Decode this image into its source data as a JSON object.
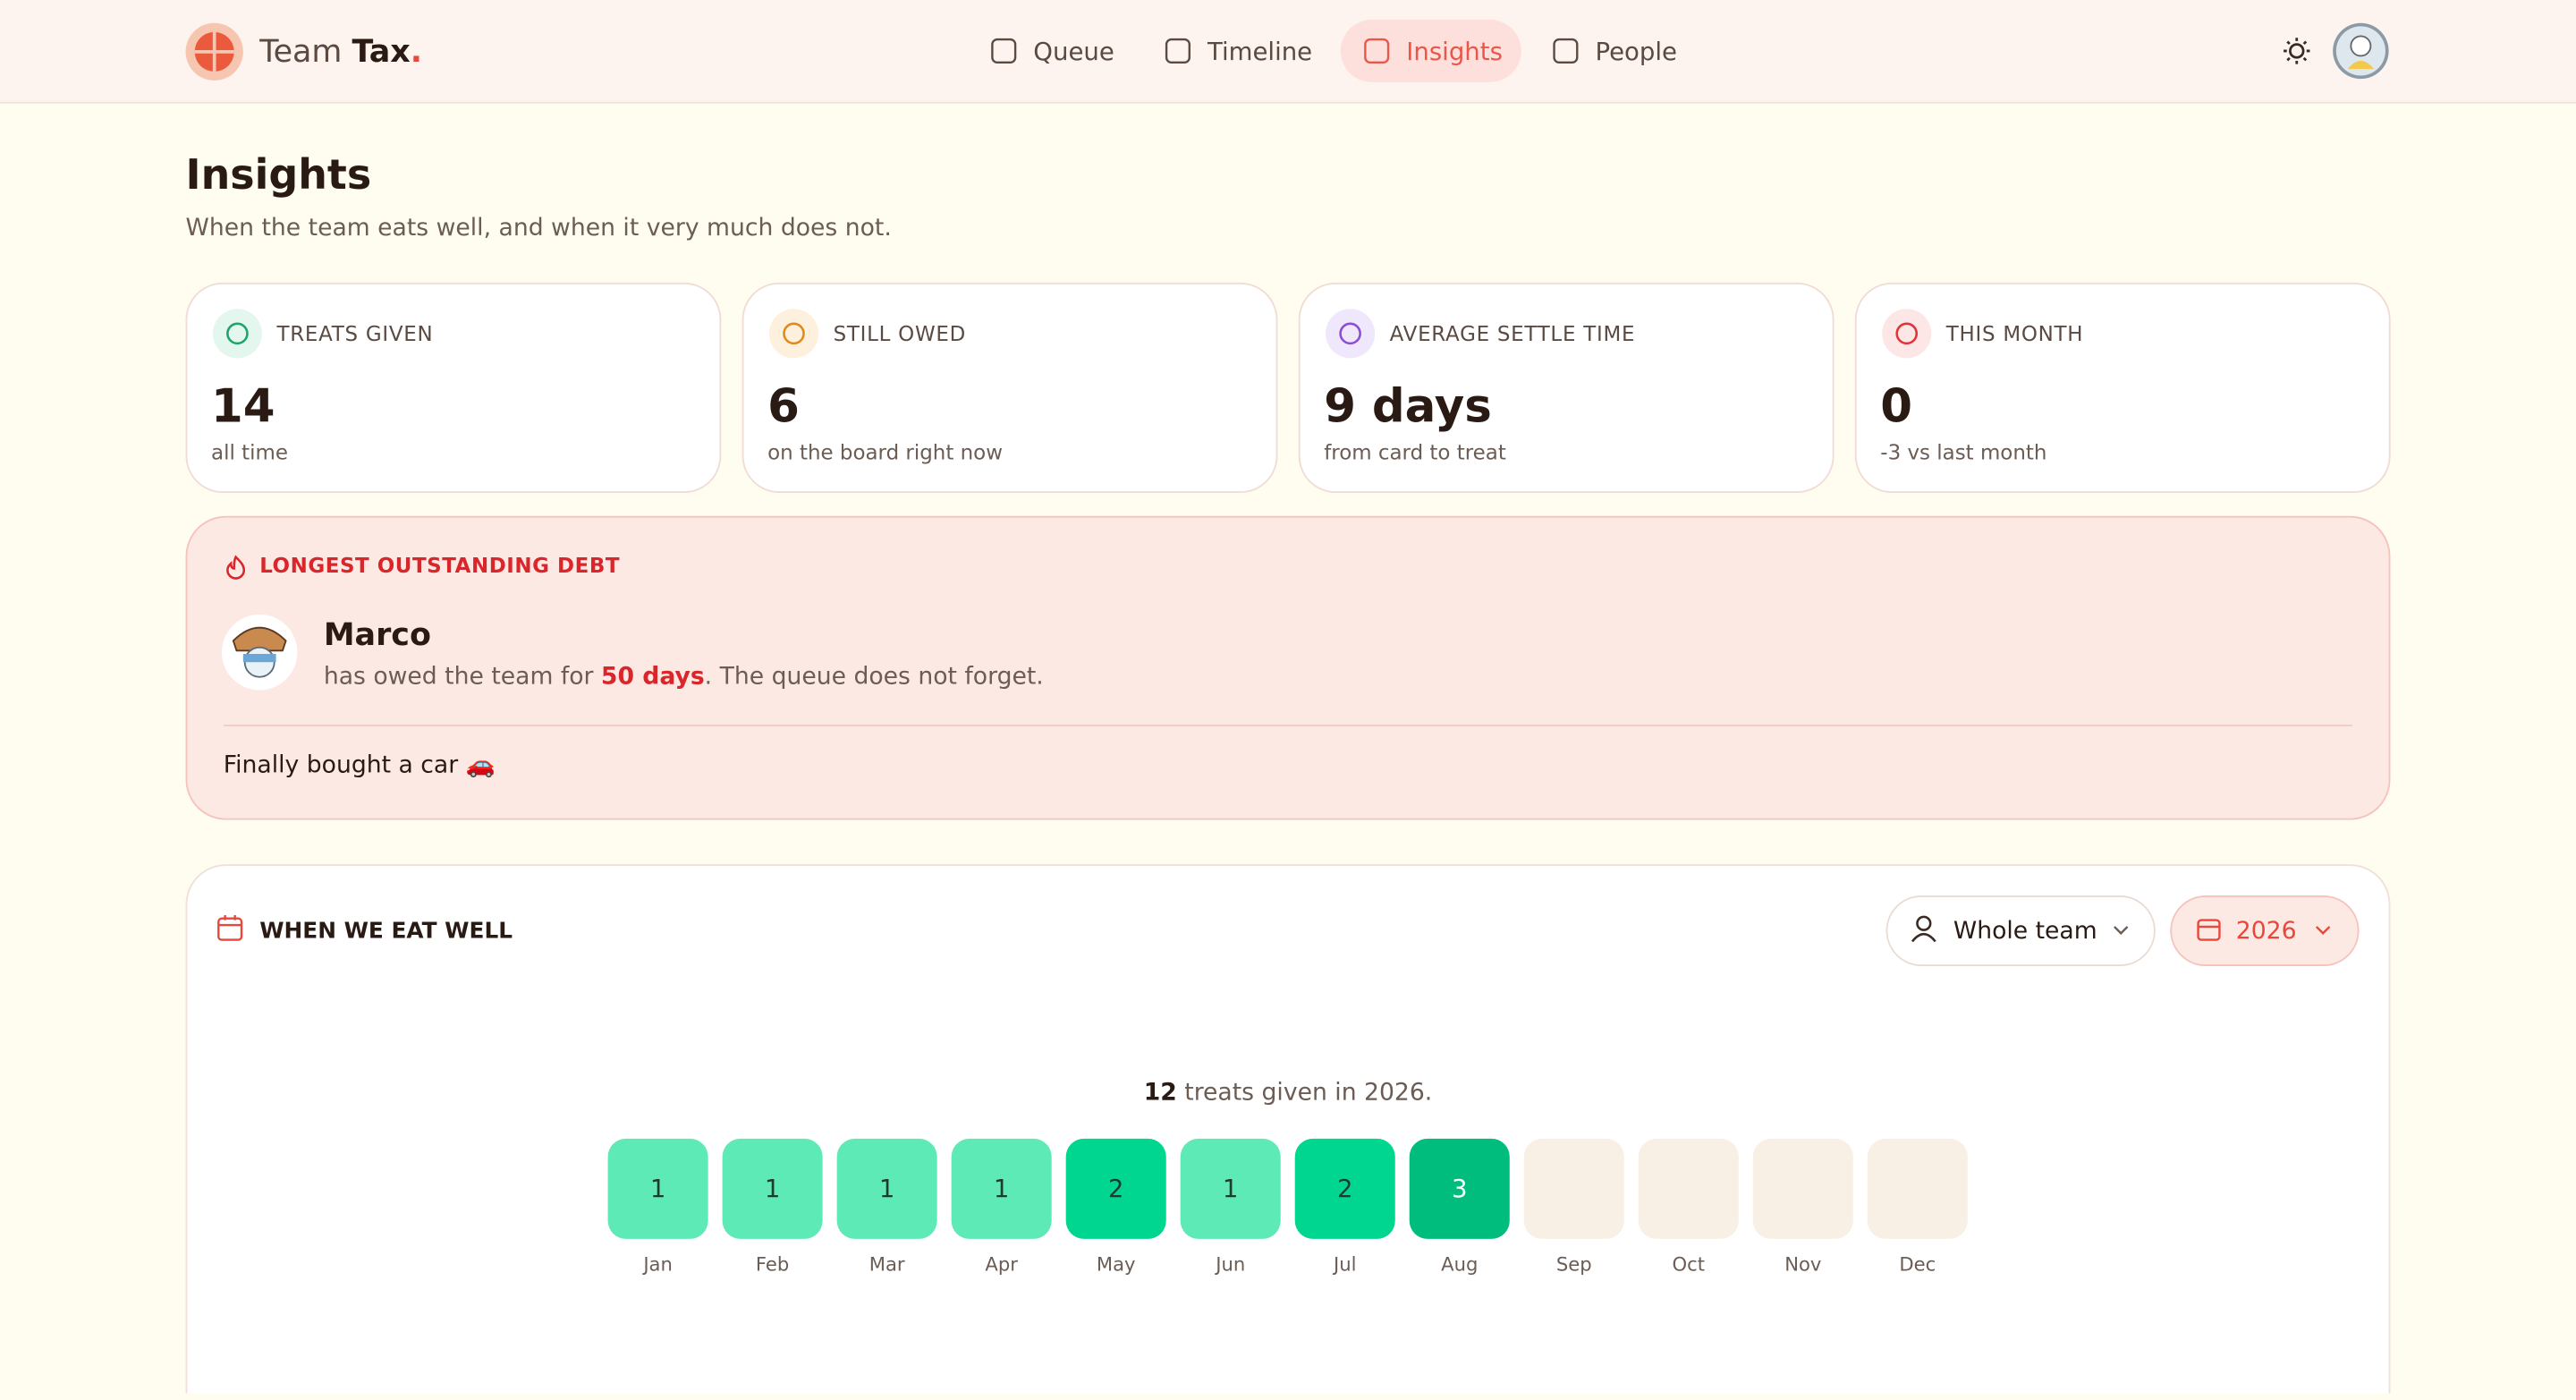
{
  "header": {
    "brand": {
      "first": "Team",
      "second": "Tax",
      "dot": "."
    },
    "nav": [
      {
        "label": "Queue"
      },
      {
        "label": "Timeline"
      },
      {
        "label": "Insights",
        "active": true
      },
      {
        "label": "People"
      }
    ]
  },
  "page": {
    "title": "Insights",
    "subtitle": "When the team eats well, and when it very much does not."
  },
  "stats": [
    {
      "label": "TREATS GIVEN",
      "value": "14",
      "caption": "all time"
    },
    {
      "label": "STILL OWED",
      "value": "6",
      "caption": "on the board right now"
    },
    {
      "label": "AVERAGE SETTLE TIME",
      "value": "9 days",
      "caption": "from card to treat"
    },
    {
      "label": "THIS MONTH",
      "value": "0",
      "caption": "-3 vs last month"
    }
  ],
  "debt": {
    "label": "LONGEST OUTSTANDING DEBT",
    "name": "Marco",
    "text_before": "has owed the team for",
    "highlight": "50 days",
    "text_after": ". The queue does not forget.",
    "note": "Finally bought a car 🚗"
  },
  "heatmap": {
    "title": "WHEN WE EAT WELL",
    "filter_person": "Whole team",
    "filter_year": "2026",
    "summary_count": "12",
    "summary_text": "treats given in 2026.",
    "months": [
      "Jan",
      "Feb",
      "Mar",
      "Apr",
      "May",
      "Jun",
      "Jul",
      "Aug",
      "Sep",
      "Oct",
      "Nov",
      "Dec"
    ],
    "counts": [
      1,
      1,
      1,
      1,
      2,
      1,
      2,
      3,
      null,
      null,
      null,
      null
    ]
  }
}
